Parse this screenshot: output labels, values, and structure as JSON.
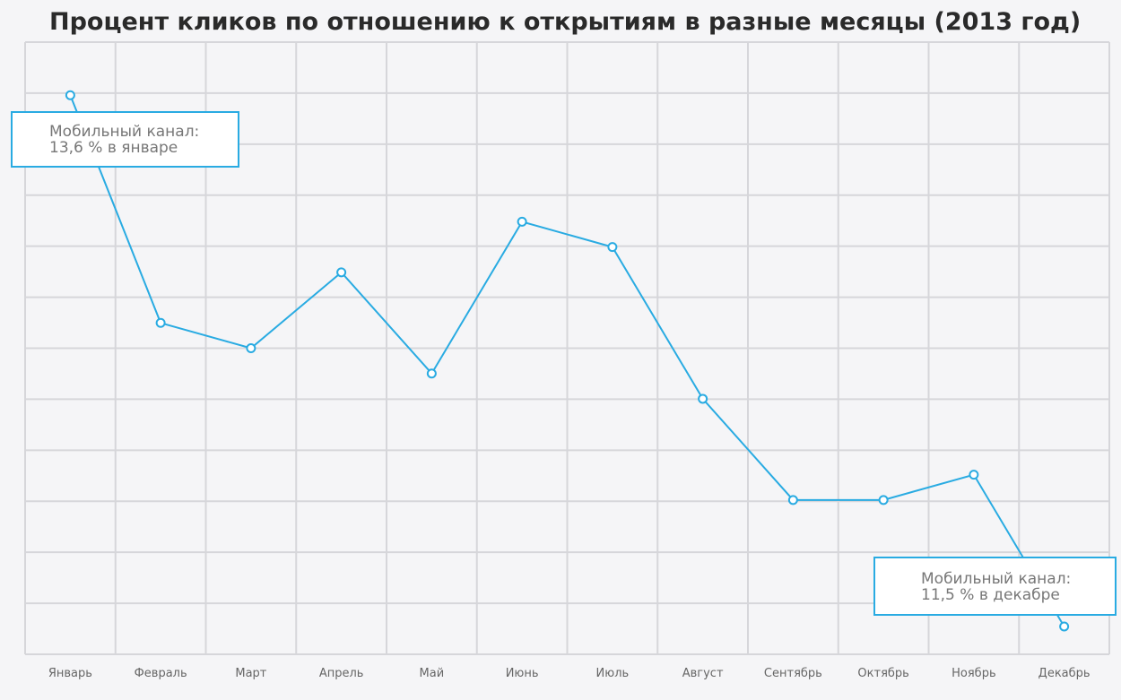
{
  "chart_data": {
    "type": "line",
    "title": "Процент кликов по отношению к открытиям в разные месяцы (2013 год)",
    "categories": [
      "Январь",
      "Февраль",
      "Март",
      "Апрель",
      "Май",
      "Июнь",
      "Июль",
      "Август",
      "Сентябрь",
      "Октябрь",
      "Ноябрь",
      "Декабрь"
    ],
    "series": [
      {
        "name": "Мобильный канал",
        "color": "#29abe2",
        "values": [
          13.6,
          12.7,
          12.6,
          12.9,
          12.5,
          13.1,
          13.0,
          12.4,
          12.0,
          12.0,
          12.1,
          11.5
        ]
      }
    ],
    "ylim": [
      11.39,
      13.81
    ],
    "grid": true,
    "annotations": [
      {
        "lines": [
          "Мобильный канал:",
          "13,6 % в январе"
        ]
      },
      {
        "lines": [
          "Мобильный канал:",
          "11,5 % в декабре"
        ]
      }
    ]
  }
}
